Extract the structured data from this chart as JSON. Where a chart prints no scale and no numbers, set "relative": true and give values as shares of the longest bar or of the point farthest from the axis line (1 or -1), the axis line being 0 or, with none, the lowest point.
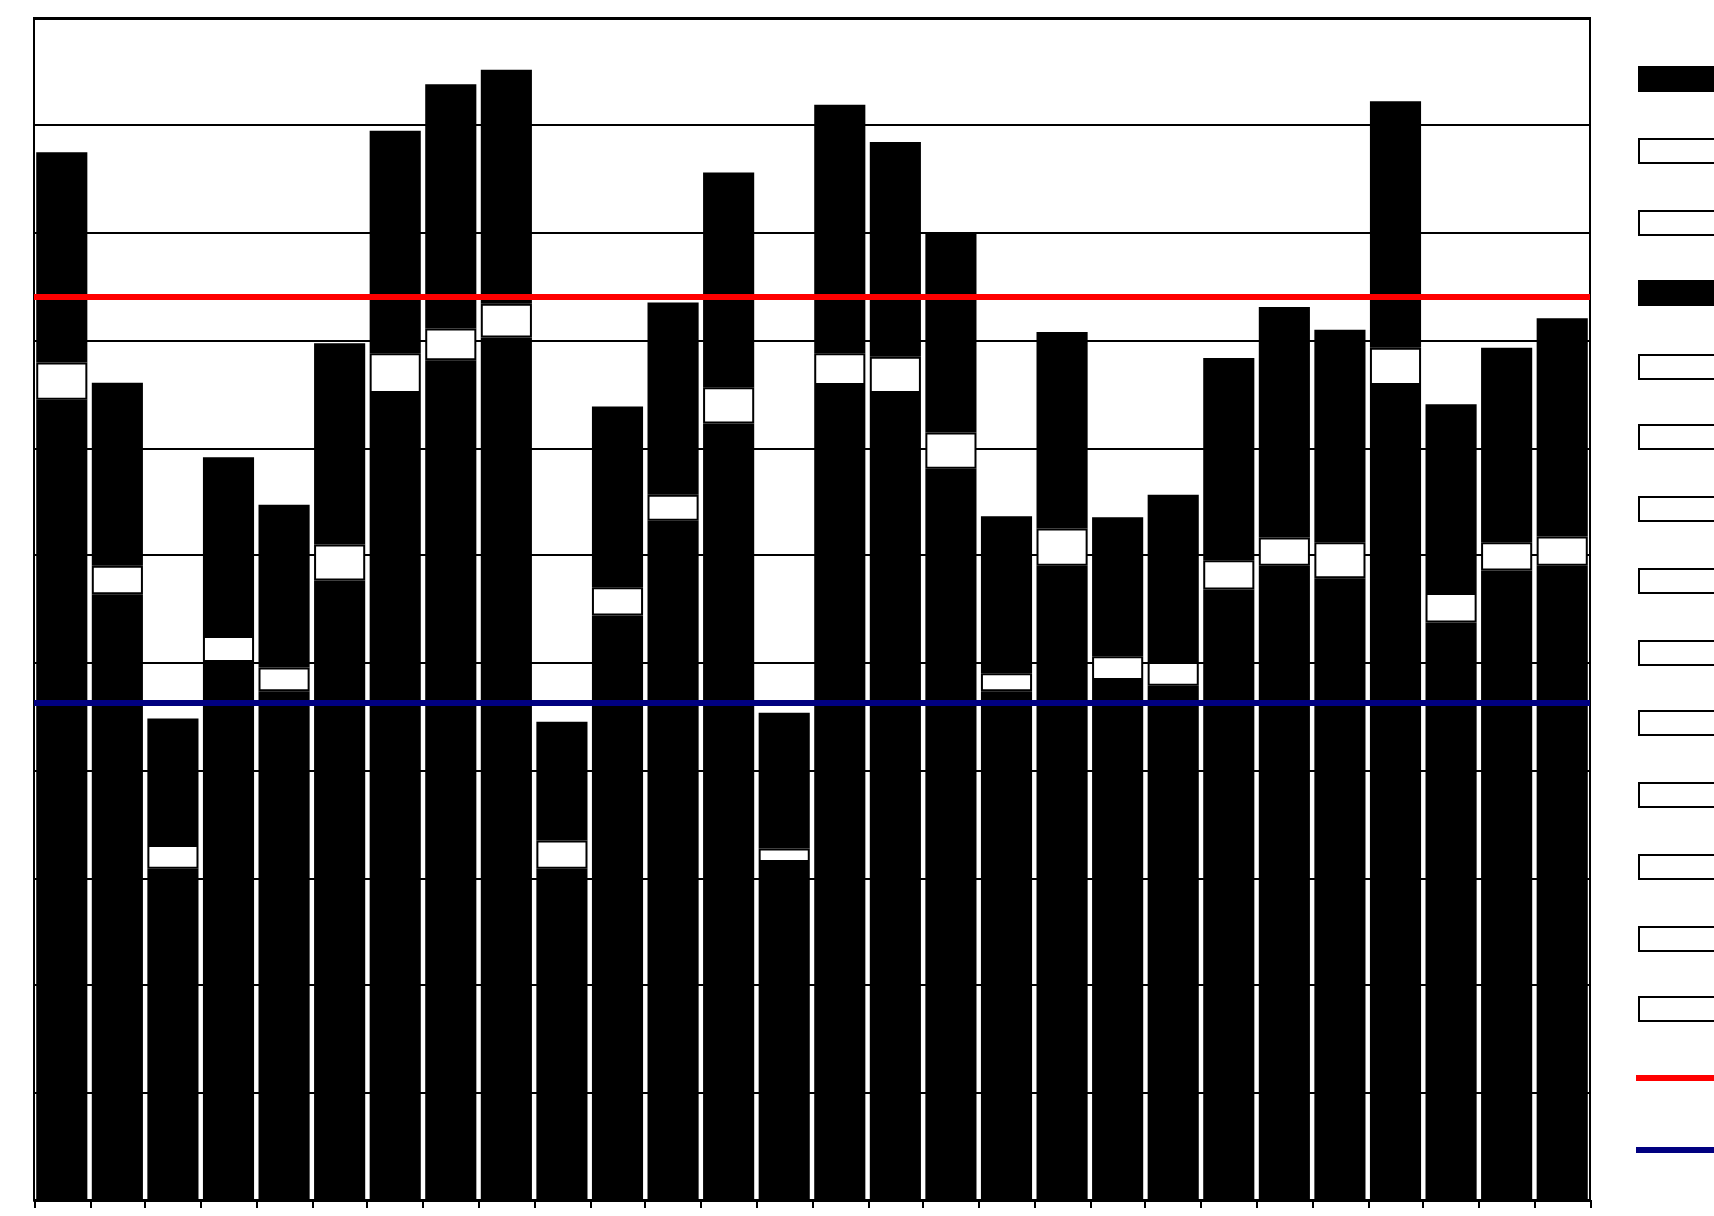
{
  "chart_data": {
    "type": "bar",
    "relative": true,
    "stacked": true,
    "grid": "y",
    "categories": [
      null,
      null,
      null,
      null,
      null,
      null,
      null,
      null,
      null,
      null,
      null,
      null,
      null,
      null,
      null,
      null,
      null,
      null,
      null,
      null,
      null,
      null,
      null,
      null,
      null,
      null,
      null,
      null
    ],
    "series": [
      {
        "color": "#000000",
        "values": [
          0.708,
          0.536,
          0.293,
          0.476,
          0.45,
          0.548,
          0.714,
          0.743,
          0.763,
          0.293,
          0.517,
          0.601,
          0.687,
          0.299,
          0.721,
          0.714,
          0.647,
          0.45,
          0.561,
          0.46,
          0.455,
          0.54,
          0.561,
          0.55,
          0.721,
          0.511,
          0.557,
          0.561
        ]
      },
      {
        "color": "#ffffff",
        "values": [
          0.033,
          0.025,
          0.021,
          0.023,
          0.021,
          0.032,
          0.035,
          0.028,
          0.03,
          0.025,
          0.025,
          0.023,
          0.032,
          0.012,
          0.028,
          0.032,
          0.032,
          0.016,
          0.033,
          0.021,
          0.021,
          0.026,
          0.025,
          0.032,
          0.033,
          0.026,
          0.025,
          0.026
        ]
      },
      {
        "color": "#000000",
        "values": [
          0.186,
          0.162,
          0.112,
          0.158,
          0.144,
          0.178,
          0.197,
          0.216,
          0.207,
          0.105,
          0.16,
          0.17,
          0.19,
          0.12,
          0.22,
          0.19,
          0.176,
          0.139,
          0.174,
          0.123,
          0.148,
          0.179,
          0.204,
          0.188,
          0.218,
          0.167,
          0.172,
          0.193
        ]
      }
    ],
    "ref_lines": [
      {
        "axis": "y",
        "value": 0.8,
        "color": "#ff0000"
      },
      {
        "axis": "y",
        "value": 0.44,
        "color": "#000080"
      }
    ]
  }
}
